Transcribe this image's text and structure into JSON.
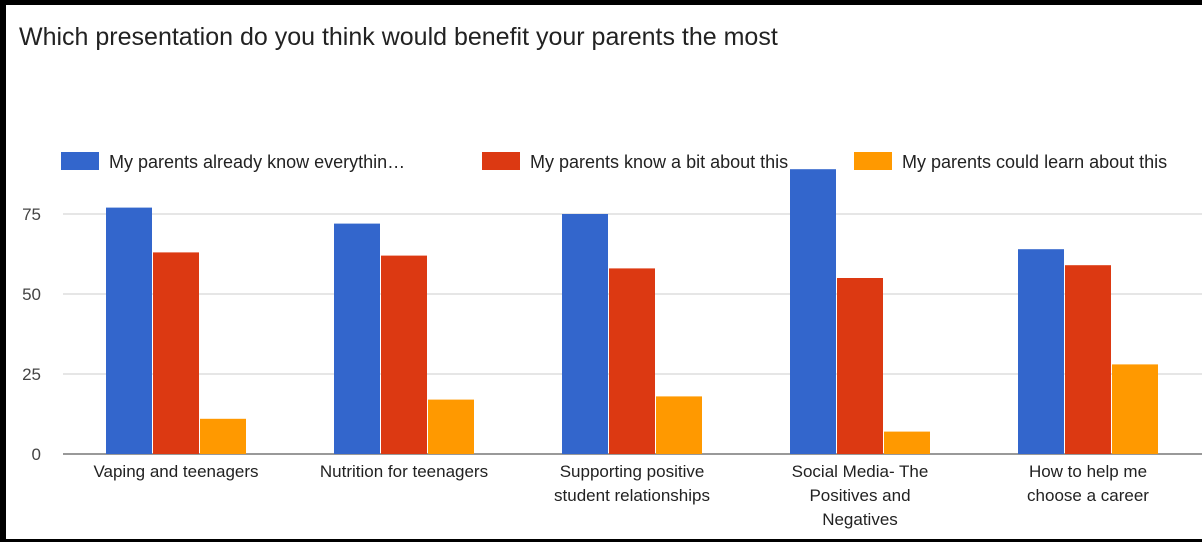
{
  "chart_data": {
    "type": "bar",
    "title": "Which presentation do you think would benefit your parents the most",
    "categories": [
      [
        "Vaping and teenagers"
      ],
      [
        "Nutrition for teenagers"
      ],
      [
        "Supporting positive",
        "student relationships"
      ],
      [
        "Social Media- The",
        "Positives and",
        "Negatives"
      ],
      [
        "How to help me",
        "choose a career"
      ]
    ],
    "series": [
      {
        "name": "My parents already know everythin…",
        "color": "#3366cc",
        "values": [
          77,
          72,
          75,
          89,
          64
        ]
      },
      {
        "name": "My parents know a bit about this",
        "color": "#dc3912",
        "values": [
          63,
          62,
          58,
          55,
          59
        ]
      },
      {
        "name": "My parents could learn about this",
        "color": "#ff9900",
        "values": [
          11,
          17,
          18,
          7,
          28
        ]
      }
    ],
    "yticks": [
      0,
      25,
      50,
      75
    ],
    "ylim": [
      0,
      90
    ],
    "grid": true,
    "legend_position": "top"
  }
}
